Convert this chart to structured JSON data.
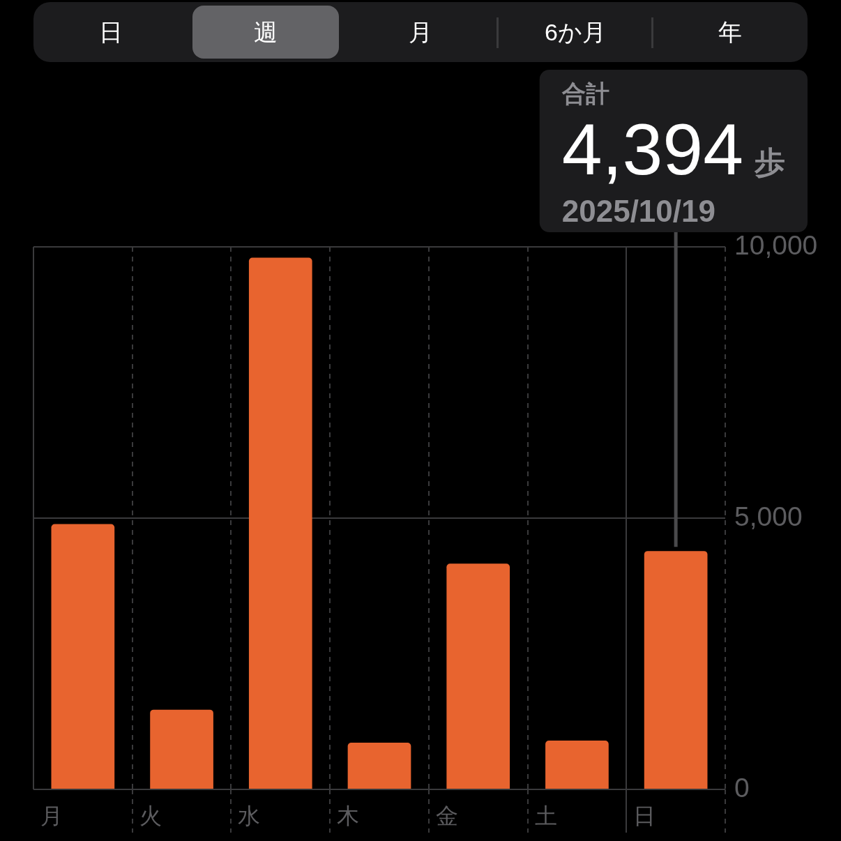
{
  "chart_data": {
    "type": "bar",
    "categories": [
      "月",
      "火",
      "水",
      "木",
      "金",
      "土",
      "日"
    ],
    "values": [
      4890,
      1470,
      9800,
      860,
      4160,
      900,
      4394
    ],
    "color": "#e8642f",
    "ylim": [
      0,
      10000
    ],
    "yticks": [
      0,
      {
        "value": 5000,
        "label": "5,000"
      },
      {
        "value": 10000,
        "label": "10,000"
      }
    ],
    "grid": true,
    "annotations": [
      "日",
      "週",
      "月",
      "6か月",
      "年",
      "合計",
      "4,394",
      "歩",
      "2025/10/19"
    ]
  }
}
